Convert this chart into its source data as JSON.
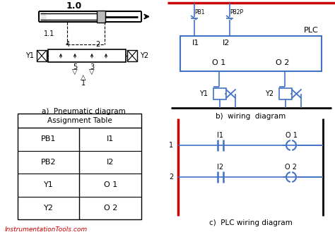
{
  "bg_color": "#ffffff",
  "blue_color": "#4472C4",
  "red_color": "#CC0000",
  "black_color": "#000000",
  "label_a": "a)  Pneumatic diagram",
  "label_b": "b)  wiring  diagram",
  "label_c": "c)  PLC wiring diagram",
  "footer": "InstrumentationTools.com",
  "table_title": "Assignment Table",
  "table_rows": [
    [
      "PB1",
      "I1"
    ],
    [
      "PB2",
      "I2"
    ],
    [
      "Y1",
      "O 1"
    ],
    [
      "Y2",
      "O 2"
    ]
  ]
}
